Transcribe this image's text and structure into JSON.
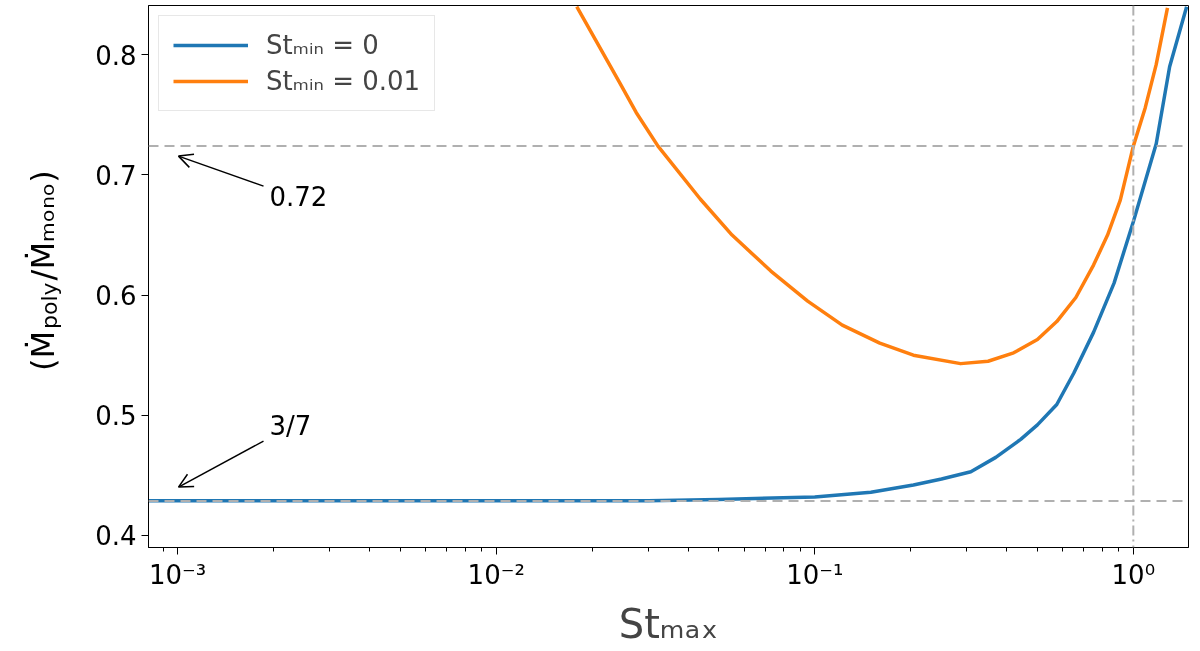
{
  "chart_data": {
    "type": "line",
    "xlabel": "Stₘₐₓ",
    "ylabel": "(Ṁ$_{poly}$/Ṁₘₒₙₒ)",
    "log": "x",
    "xlim": [
      0.00081,
      1.49
    ],
    "ylim": [
      0.39,
      0.841
    ],
    "xticks": [
      {
        "value": 0.001,
        "label": "10⁻³"
      },
      {
        "value": 0.01,
        "label": "10⁻²"
      },
      {
        "value": 0.1,
        "label": "10⁻¹"
      },
      {
        "value": 1,
        "label": "10⁰"
      }
    ],
    "yticks": [
      0.4,
      0.5,
      0.6,
      0.7,
      0.8
    ],
    "grid": false,
    "legend": "top left",
    "line_style": "solid",
    "marker": "none",
    "series": [
      {
        "name": "Stₘᵢₙ = 0",
        "color": "#1f77b4",
        "x": [
          0.00081,
          0.001,
          0.003,
          0.01,
          0.03,
          0.05,
          0.1,
          0.15,
          0.204,
          0.25,
          0.309,
          0.37,
          0.443,
          0.5,
          0.575,
          0.65,
          0.75,
          0.87,
          1.0,
          1.18,
          1.3,
          1.47
        ],
        "values": [
          0.429,
          0.429,
          0.429,
          0.429,
          0.429,
          0.43,
          0.432,
          0.436,
          0.442,
          0.447,
          0.453,
          0.465,
          0.48,
          0.492,
          0.509,
          0.535,
          0.569,
          0.61,
          0.661,
          0.726,
          0.79,
          0.84
        ]
      },
      {
        "name": "Stₘᵢₙ = 0.01",
        "color": "#ff7f0e",
        "x": [
          0.0179,
          0.0245,
          0.0275,
          0.0322,
          0.0437,
          0.055,
          0.0728,
          0.095,
          0.122,
          0.16,
          0.204,
          0.287,
          0.35,
          0.421,
          0.5,
          0.575,
          0.66,
          0.75,
          0.83,
          0.91,
          1.0,
          1.09,
          1.18,
          1.28
        ],
        "values": [
          0.84,
          0.776,
          0.752,
          0.724,
          0.68,
          0.65,
          0.62,
          0.595,
          0.575,
          0.56,
          0.55,
          0.543,
          0.545,
          0.552,
          0.563,
          0.578,
          0.598,
          0.625,
          0.65,
          0.679,
          0.724,
          0.756,
          0.792,
          0.839
        ]
      }
    ],
    "ref_lines": [
      {
        "axis": "y",
        "value": 0.724,
        "color": "#b0b0b0",
        "line_style": "dashed"
      },
      {
        "axis": "y",
        "value": 0.4286,
        "color": "#b0b0b0",
        "line_style": "dashed"
      },
      {
        "axis": "x",
        "value": 1,
        "color": "#b0b0b0",
        "line_style": "dashdot"
      }
    ],
    "annotations": [
      "0.72",
      "3/7"
    ]
  }
}
